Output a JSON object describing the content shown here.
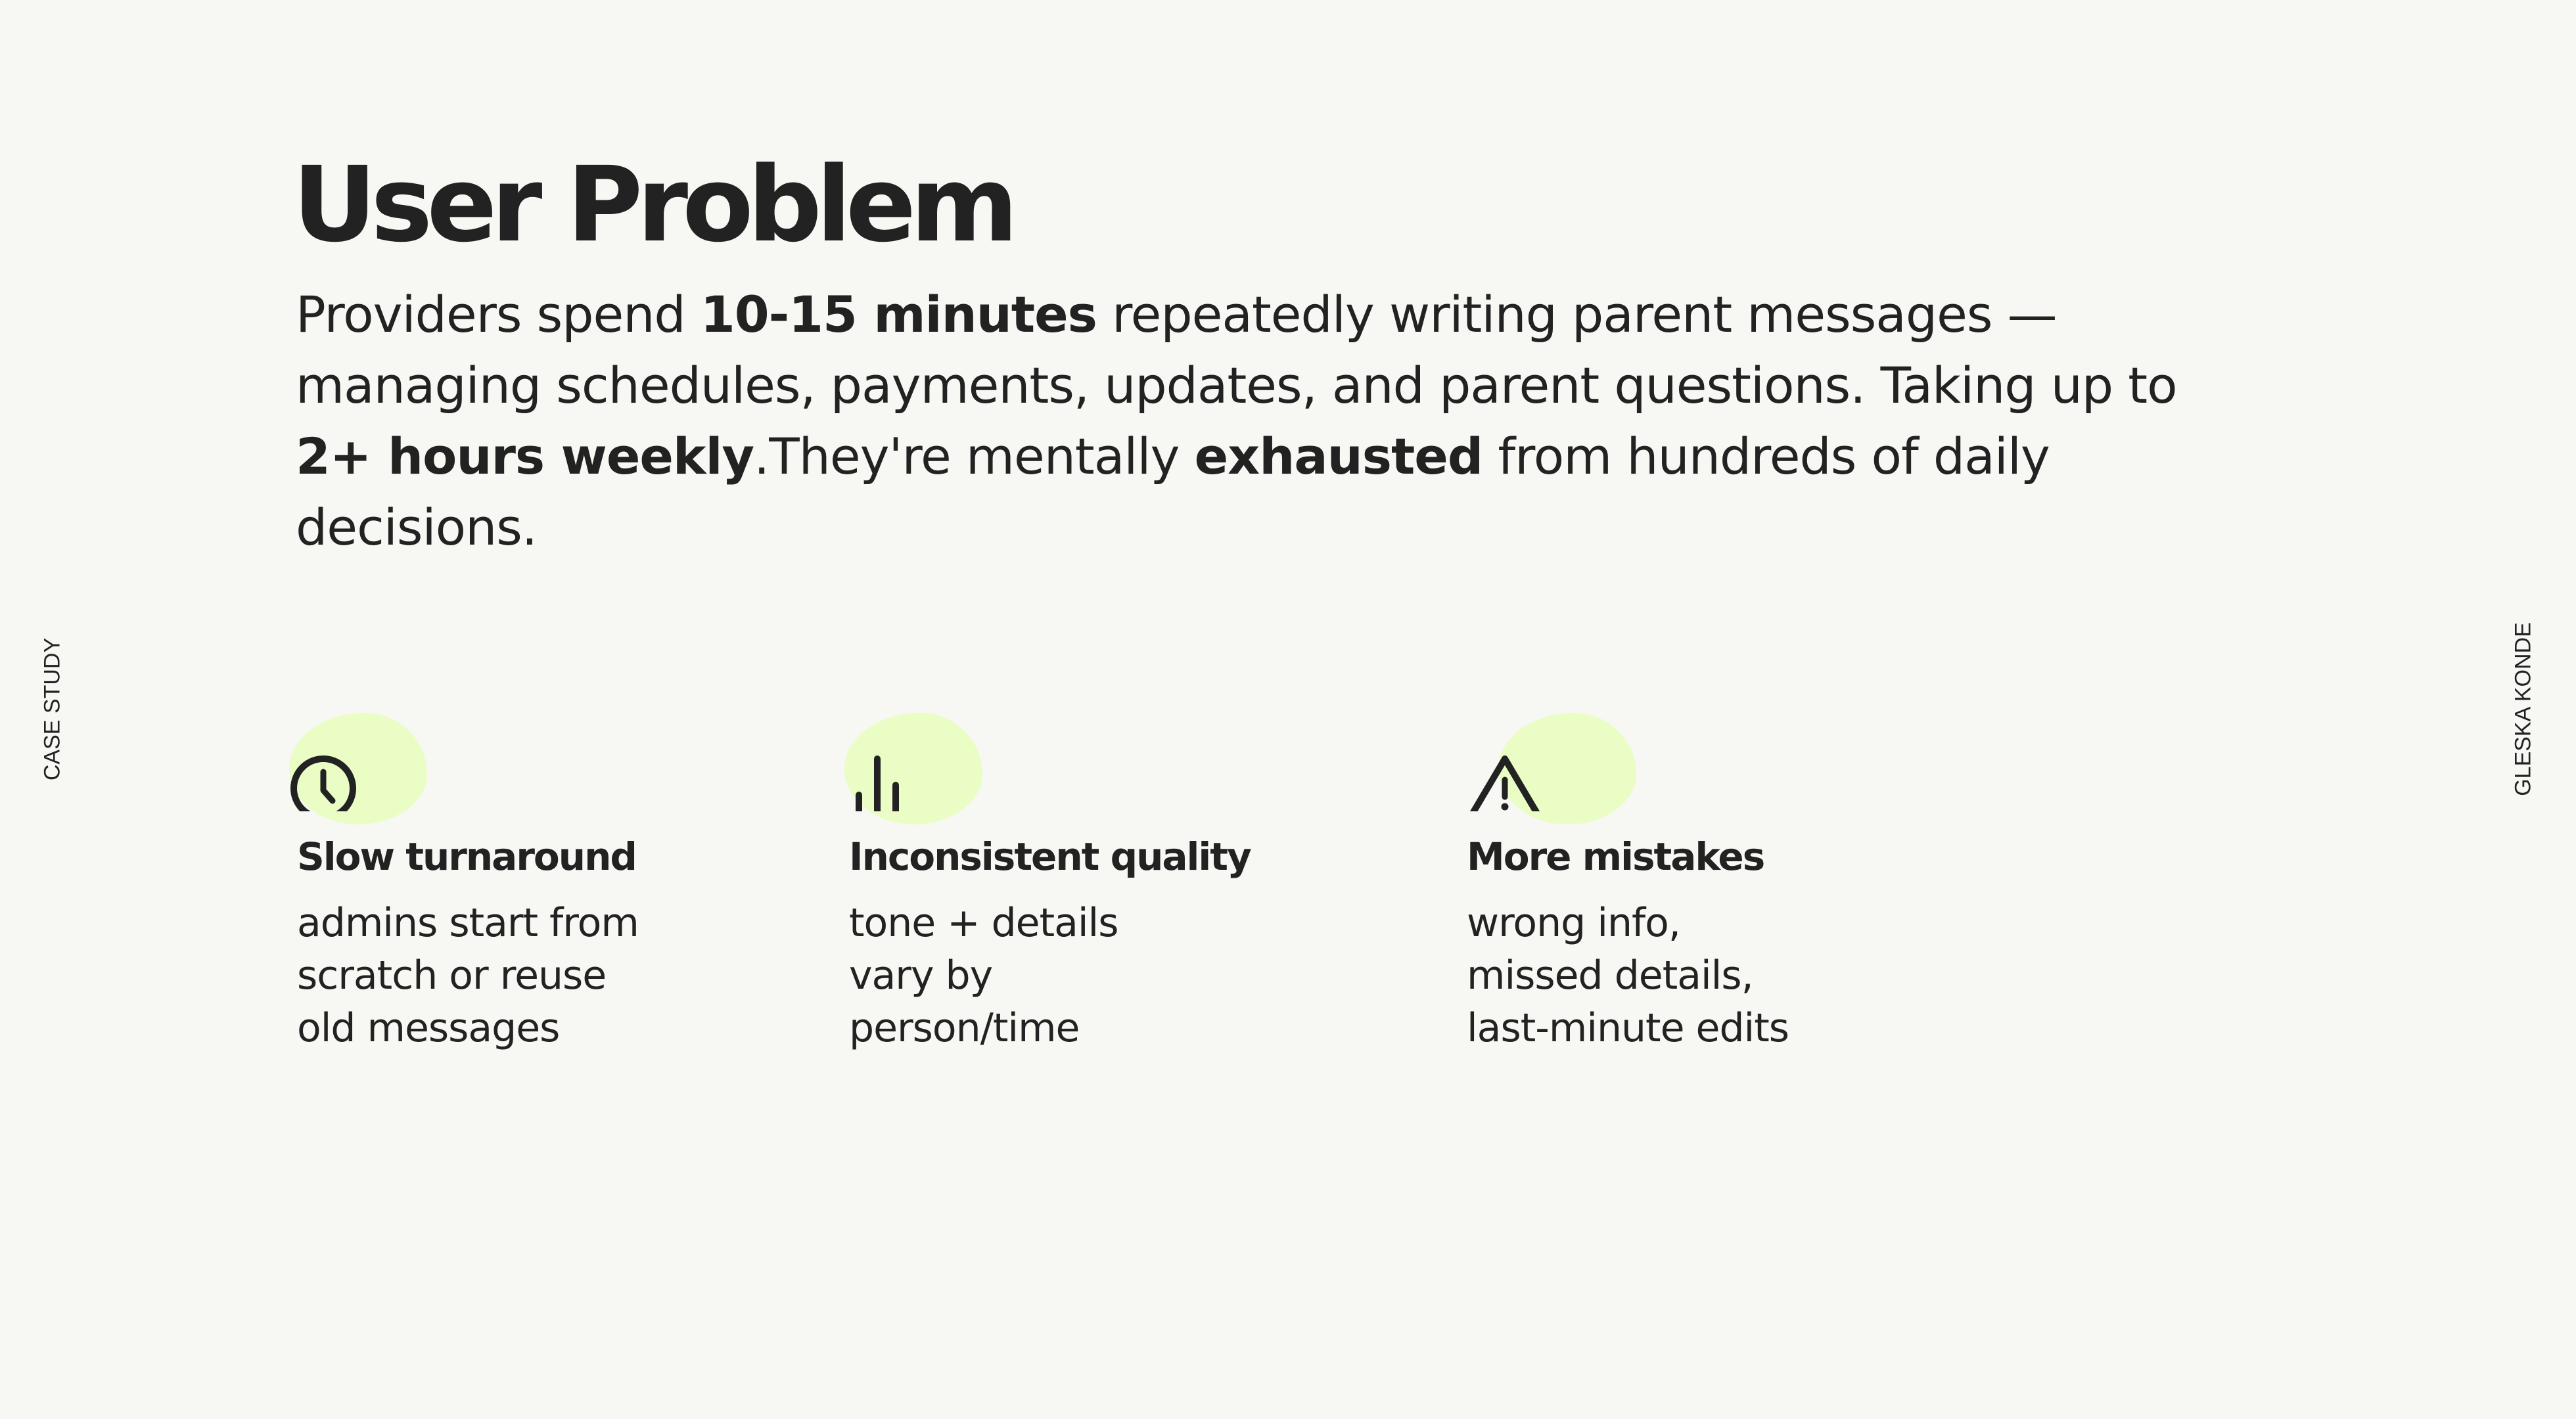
{
  "side_left": "CASE STUDY",
  "side_right": "GLESKA KONDE",
  "title": "User Problem",
  "lead": {
    "t1": "Providers spend ",
    "b1": "10-15 minutes",
    "t2": " repeatedly writing parent messages — managing schedules, payments, updates, and parent questions. Taking up to ",
    "b2": "2+ hours weekly",
    "t3": ".They're mentally ",
    "b3": "exhausted",
    "t4": " from hundreds of daily decisions."
  },
  "colors": {
    "background": "#f7f8f3",
    "text": "#222222",
    "highlight": "#eafdc5"
  },
  "cards": [
    {
      "icon": "clock-icon",
      "title": "Slow turnaround",
      "lines": [
        "admins start from",
        "scratch or reuse",
        "old messages"
      ]
    },
    {
      "icon": "bar-chart-icon",
      "title": "Inconsistent quality",
      "lines": [
        "tone + details",
        "vary by",
        "person/time"
      ]
    },
    {
      "icon": "warning-icon",
      "title": "More mistakes",
      "lines": [
        "wrong info,",
        "missed details,",
        "last-minute edits"
      ]
    }
  ]
}
